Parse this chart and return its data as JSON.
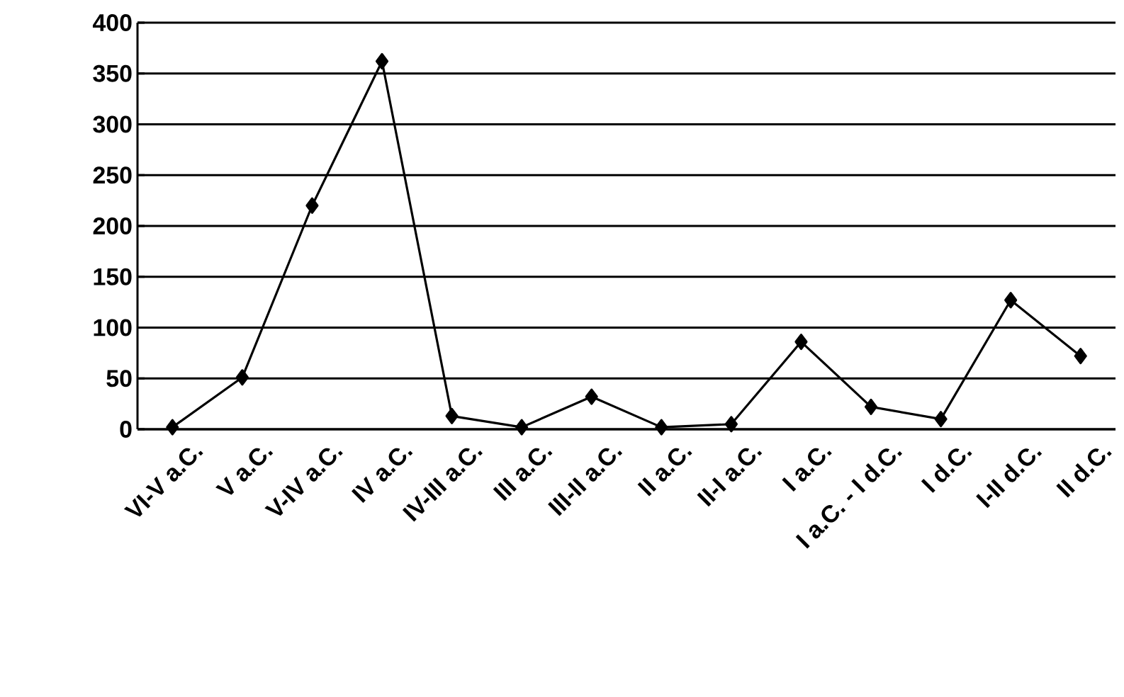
{
  "chart_data": {
    "type": "line",
    "categories": [
      "VI-V a.C.",
      "V a.C.",
      "V-IV a.C.",
      "IV a.C.",
      "IV-III a.C.",
      "III a.C.",
      "III-II a.C.",
      "II a.C.",
      "II-I a.C.",
      "I a.C.",
      "I a.C. -   I d.C.",
      "I d.C.",
      "I-II d.C.",
      "II d.C."
    ],
    "series": [
      {
        "color": "#000000",
        "values": [
          2,
          51,
          220,
          362,
          13,
          2,
          32,
          2,
          5,
          86,
          22,
          10,
          127,
          72
        ]
      }
    ],
    "ylim": [
      0,
      400
    ],
    "yticks": [
      0,
      50,
      100,
      150,
      200,
      250,
      300,
      350,
      400
    ],
    "grid": "y",
    "marker": "diamond",
    "line_style": "solid"
  }
}
